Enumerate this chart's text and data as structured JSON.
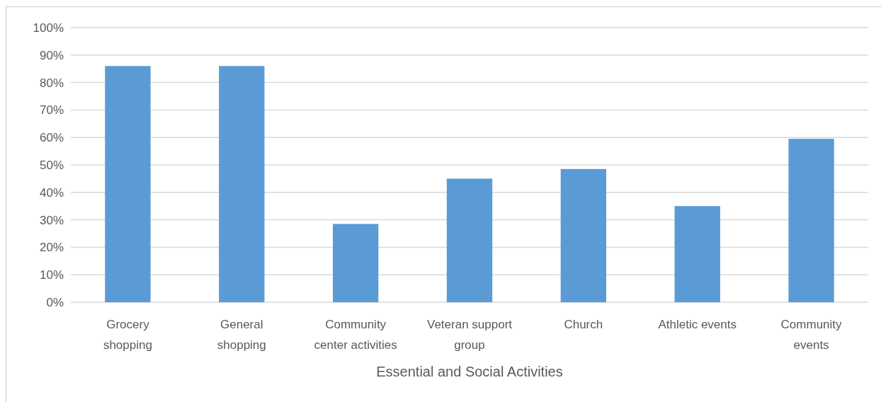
{
  "chart_data": {
    "type": "bar",
    "xlabel": "Essential and Social Activities",
    "categories": [
      "Grocery shopping",
      "General shopping",
      "Community center activities",
      "Veteran support group",
      "Church",
      "Athletic events",
      "Community events"
    ],
    "values": [
      86,
      86,
      28.5,
      45,
      48.5,
      35,
      59.5
    ],
    "color": "#5b9bd5",
    "ylim": [
      0,
      100
    ],
    "yticks": [
      {
        "value": 0,
        "label": "0%"
      },
      {
        "value": 10,
        "label": "10%"
      },
      {
        "value": 20,
        "label": "20%"
      },
      {
        "value": 30,
        "label": "30%"
      },
      {
        "value": 40,
        "label": "40%"
      },
      {
        "value": 50,
        "label": "50%"
      },
      {
        "value": 60,
        "label": "60%"
      },
      {
        "value": 70,
        "label": "70%"
      },
      {
        "value": 80,
        "label": "80%"
      },
      {
        "value": 90,
        "label": "90%"
      },
      {
        "value": 100,
        "label": "100%"
      }
    ],
    "grid": "y"
  }
}
